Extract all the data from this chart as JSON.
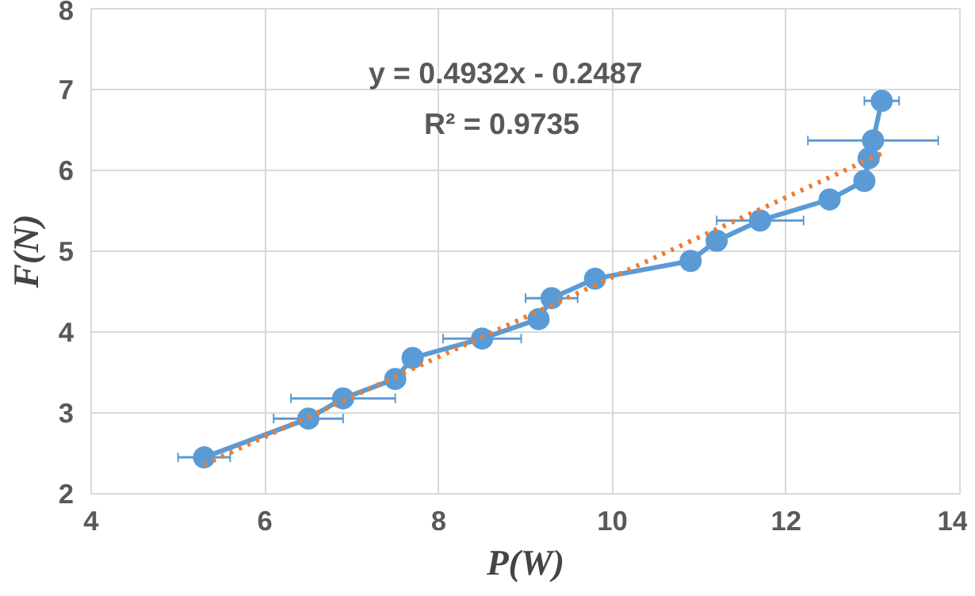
{
  "chart_data": {
    "type": "line",
    "xlabel": "P(W)",
    "ylabel": "F(N)",
    "xlim": [
      4,
      14
    ],
    "ylim": [
      2,
      8
    ],
    "xticks": [
      4,
      6,
      8,
      10,
      12,
      14
    ],
    "yticks": [
      2,
      3,
      4,
      5,
      6,
      7,
      8
    ],
    "grid": true,
    "marker": "circle",
    "annotations": [
      "y = 0.4932x - 0.2487",
      "R² = 0.9735"
    ],
    "series": [
      {
        "color": "#5b9bd5",
        "x": [
          5.3,
          6.5,
          6.9,
          7.5,
          7.7,
          8.5,
          9.15,
          9.3,
          9.8,
          10.9,
          11.2,
          11.7,
          12.5,
          12.9,
          12.95,
          13.0,
          13.1
        ],
        "values": [
          2.45,
          2.93,
          3.18,
          3.42,
          3.68,
          3.92,
          4.16,
          4.42,
          4.66,
          4.88,
          5.13,
          5.38,
          5.64,
          5.87,
          6.15,
          6.37,
          6.86
        ],
        "xerrors": [
          0.3,
          0.4,
          0.6,
          null,
          null,
          0.45,
          null,
          0.3,
          null,
          null,
          null,
          0.5,
          null,
          null,
          null,
          0.75,
          0.2
        ]
      },
      {
        "type": "line",
        "color": "#ed7d31",
        "line_style": "dotted",
        "marker": "none",
        "x": [
          5.3,
          13.1
        ],
        "values": [
          2.36,
          6.21
        ]
      }
    ]
  }
}
